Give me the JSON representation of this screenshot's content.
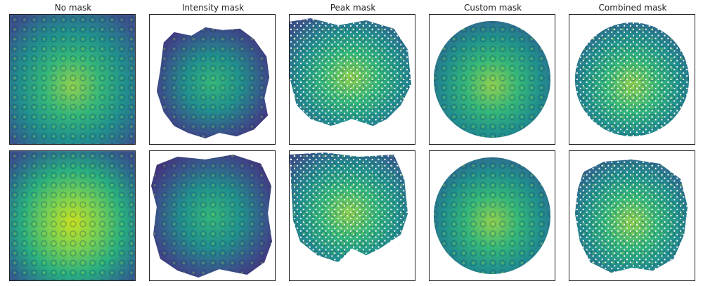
{
  "figure": {
    "columns": [
      {
        "title": "No mask"
      },
      {
        "title": "Intensity mask"
      },
      {
        "title": "Peak mask"
      },
      {
        "title": "Custom mask"
      },
      {
        "title": "Combined mask"
      }
    ],
    "colormap": [
      "#440154",
      "#3b528b",
      "#21908d",
      "#5dc963",
      "#fde725"
    ]
  }
}
